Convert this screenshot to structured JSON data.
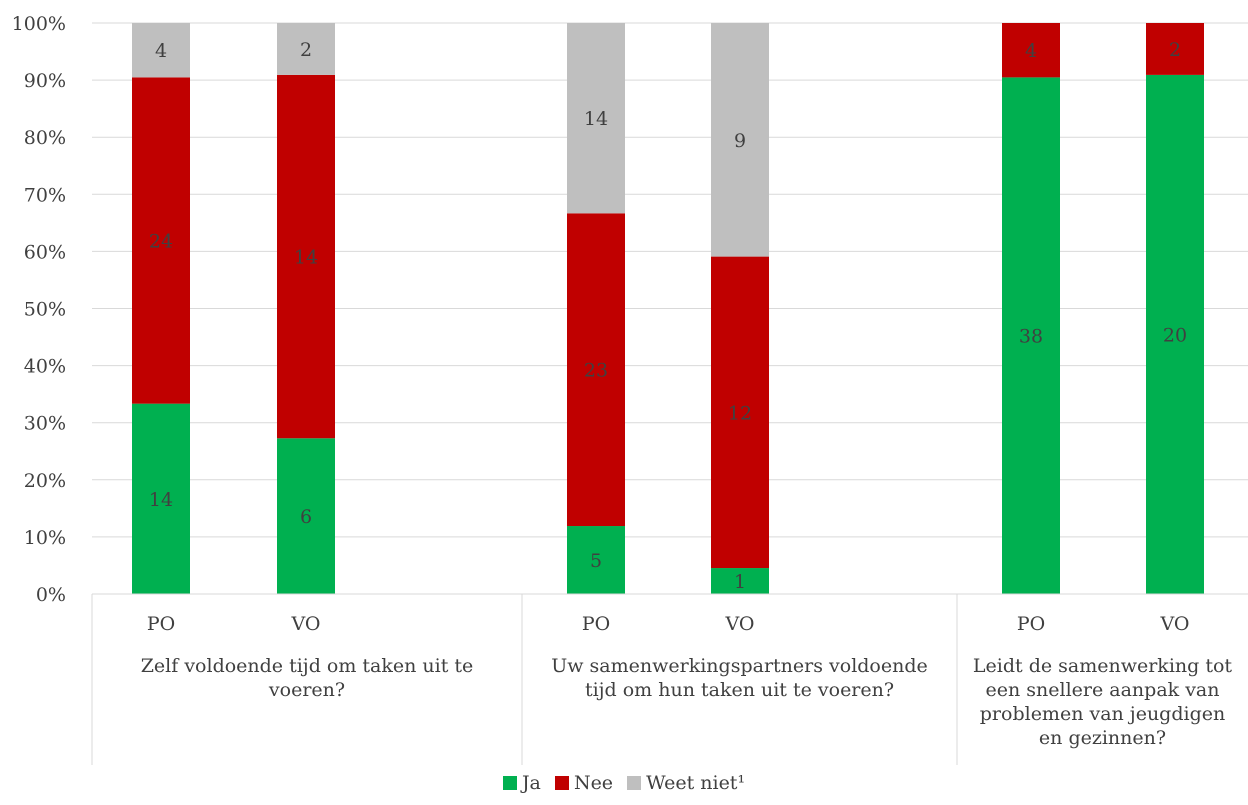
{
  "chart_data": {
    "type": "bar",
    "stacked": true,
    "percent": true,
    "y_axis": {
      "ticks": [
        "0%",
        "10%",
        "20%",
        "30%",
        "40%",
        "50%",
        "60%",
        "70%",
        "80%",
        "90%",
        "100%"
      ],
      "ylim": [
        0,
        100
      ]
    },
    "grid": true,
    "legend_position": "bottom",
    "groups": [
      {
        "label": "Zelf voldoende tijd om taken uit te voeren?",
        "bars": [
          {
            "category": "PO",
            "values": [
              14,
              24,
              4
            ]
          },
          {
            "category": "VO",
            "values": [
              6,
              14,
              2
            ]
          }
        ]
      },
      {
        "label": "Uw samenwerkingspartners voldoende tijd om hun taken uit te voeren?",
        "bars": [
          {
            "category": "PO",
            "values": [
              5,
              23,
              14
            ]
          },
          {
            "category": "VO",
            "values": [
              1,
              12,
              9
            ]
          }
        ]
      },
      {
        "label": "Leidt de samenwerking tot een snellere aanpak van problemen van jeugdigen en gezinnen?",
        "bars": [
          {
            "category": "PO",
            "values": [
              38,
              4,
              0
            ]
          },
          {
            "category": "VO",
            "values": [
              20,
              2,
              0
            ]
          }
        ]
      }
    ],
    "series": [
      {
        "name": "Ja",
        "color": "#00b050"
      },
      {
        "name": "Nee",
        "color": "#c00000"
      },
      {
        "name": "Weet niet¹",
        "color": "#bfbfbf"
      }
    ]
  },
  "legend": {
    "ja": "Ja",
    "nee": "Nee",
    "weet_niet": "Weet niet¹"
  },
  "group_labels": {
    "g1_line1": "Zelf voldoende tijd om taken uit te",
    "g1_line2": "voeren?",
    "g2_line1": "Uw samenwerkingspartners voldoende",
    "g2_line2": "tijd om hun taken uit te voeren?",
    "g3_line1": "Leidt de samenwerking tot",
    "g3_line2": "een snellere aanpak van",
    "g3_line3": "problemen van jeugdigen",
    "g3_line4": "en gezinnen?"
  }
}
